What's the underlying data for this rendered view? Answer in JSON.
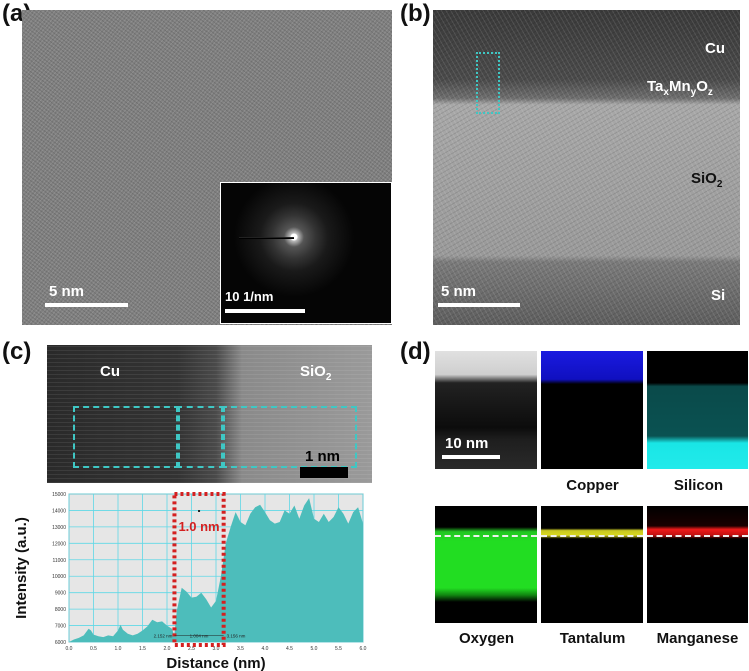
{
  "panels": {
    "a": {
      "label": "(a)",
      "scale_bar": "5 nm",
      "inset_scale_bar": "10 1/nm"
    },
    "b": {
      "label": "(b)",
      "layers": {
        "cu": "Cu",
        "ta": "Ta",
        "ta_sub": "x",
        "mn": "Mn",
        "mn_sub": "y",
        "o": "O",
        "o_sub": "z",
        "sio2": "SiO",
        "sio2_sub": "2",
        "si": "Si"
      },
      "scale_bar": "5 nm"
    },
    "c": {
      "label": "(c)",
      "cu": "Cu",
      "sio2": "SiO",
      "sio2_sub": "2",
      "scale_bar": "1 nm"
    },
    "d": {
      "label": "(d)",
      "scale_bar": "10 nm",
      "maps": [
        "Copper",
        "Silicon",
        "Oxygen",
        "Tantalum",
        "Manganese"
      ],
      "colors": {
        "copper": "#1a1aff",
        "silicon": "#19e6e6",
        "oxygen": "#22dd22",
        "tantalum": "#d8d820",
        "manganese": "#ee1a1a"
      }
    }
  },
  "chart_data": {
    "type": "area",
    "xlabel": "Distance (nm)",
    "ylabel": "Intensity (a.u.)",
    "xlim": [
      0,
      6
    ],
    "ylim": [
      6000,
      15000
    ],
    "grid": true,
    "xticks": [
      "0.0",
      "0.5",
      "1.0",
      "1.5",
      "2.0",
      "2.5",
      "3.0",
      "3.5",
      "4.0",
      "4.5",
      "5.0",
      "5.5",
      "6.0"
    ],
    "yticks": [
      "6000",
      "7000",
      "8000",
      "9000",
      "10000",
      "11000",
      "12000",
      "13000",
      "14000",
      "15000"
    ],
    "fill_color": "#4dbdbb",
    "x": [
      0,
      0.1,
      0.2,
      0.3,
      0.4,
      0.45,
      0.5,
      0.6,
      0.7,
      0.8,
      0.9,
      1.0,
      1.05,
      1.1,
      1.2,
      1.3,
      1.4,
      1.5,
      1.6,
      1.7,
      1.8,
      1.9,
      2.0,
      2.1,
      2.15,
      2.2,
      2.3,
      2.4,
      2.5,
      2.6,
      2.7,
      2.8,
      2.9,
      3.0,
      3.1,
      3.2,
      3.3,
      3.4,
      3.5,
      3.6,
      3.7,
      3.8,
      3.9,
      4.0,
      4.1,
      4.2,
      4.3,
      4.4,
      4.5,
      4.6,
      4.7,
      4.8,
      4.9,
      5.0,
      5.1,
      5.2,
      5.3,
      5.4,
      5.5,
      5.6,
      5.7,
      5.8,
      5.9,
      6.0
    ],
    "y": [
      6000,
      6150,
      6250,
      6400,
      6800,
      6700,
      6450,
      6350,
      6300,
      6400,
      6350,
      6700,
      7050,
      6750,
      6500,
      6400,
      6500,
      6700,
      6950,
      7350,
      7200,
      7250,
      7000,
      6800,
      6400,
      7900,
      9300,
      9050,
      8700,
      8750,
      9000,
      8600,
      8100,
      8500,
      10000,
      12000,
      13000,
      13900,
      13300,
      13100,
      13800,
      14200,
      14350,
      13900,
      13400,
      13200,
      13300,
      14000,
      13800,
      14300,
      13500,
      14300,
      14750,
      13500,
      13300,
      13800,
      13300,
      13600,
      14200,
      13800,
      13200,
      13900,
      14200,
      13200
    ],
    "highlight": {
      "x_range": [
        2.152,
        3.156
      ],
      "label": "1.0 nm",
      "color": "#d42020"
    },
    "measurements": [
      "2.152 nm",
      "1.004 nm",
      "3.156 nm"
    ]
  }
}
